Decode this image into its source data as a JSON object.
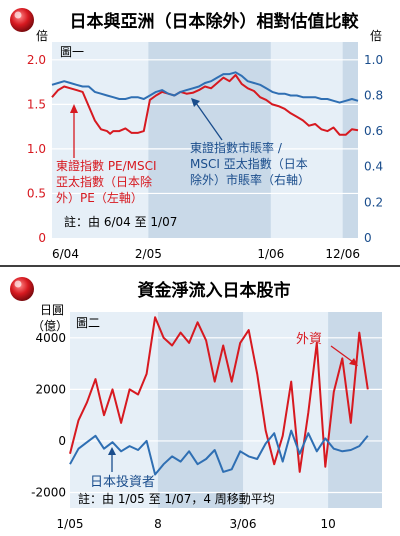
{
  "colors": {
    "red": "#d71920",
    "blue": "#2f6fb3",
    "blue_label": "#1a4d8c",
    "shade": "#c9d9e8",
    "plot_bg": "#e6eff7"
  },
  "chart_data": [
    {
      "type": "line",
      "title": "日本與亞洲（日本除外）相對估值比較",
      "panel_label": "圖一",
      "left_axis_unit": "倍",
      "right_axis_unit": "倍",
      "left_ticks": [
        "2.0",
        "1.5",
        "1.0",
        "0.5",
        "0"
      ],
      "right_ticks": [
        "1.0",
        "0.8",
        "0.6",
        "0.4",
        "0.2",
        "0"
      ],
      "ylim_left": [
        0,
        2.2
      ],
      "ylim_right": [
        0,
        1.1
      ],
      "x_tick_labels": [
        "6/04",
        "2/05",
        "1/06",
        "12/06"
      ],
      "shaded_spans": [
        [
          "2/05",
          "1/06"
        ],
        [
          "12/06",
          "1/07"
        ]
      ],
      "note": "註：由 6/04 至 1/07",
      "series": [
        {
          "name": "東證指數 PE/MSCI 亞太指數（日本除外）PE（左軸）",
          "label_lines": [
            "東證指數 PE/MSCI",
            "亞太指數（日本除",
            "外）PE（左軸）"
          ],
          "axis": "left",
          "color": "#d71920",
          "x": [
            0,
            2,
            4,
            6,
            8,
            10,
            12,
            14,
            16,
            18,
            19,
            20,
            22,
            24,
            26,
            28,
            30,
            32,
            34,
            36,
            38,
            40,
            42,
            44,
            46,
            48,
            50,
            52,
            54,
            56,
            58,
            60,
            62,
            64,
            66,
            68,
            70,
            72,
            74,
            76,
            78,
            80,
            82,
            84,
            86,
            88,
            90,
            92,
            94,
            96,
            98,
            100
          ],
          "y": [
            1.58,
            1.66,
            1.7,
            1.68,
            1.66,
            1.64,
            1.48,
            1.32,
            1.22,
            1.2,
            1.17,
            1.2,
            1.2,
            1.23,
            1.18,
            1.18,
            1.2,
            1.55,
            1.6,
            1.64,
            1.62,
            1.6,
            1.64,
            1.62,
            1.63,
            1.66,
            1.7,
            1.68,
            1.74,
            1.8,
            1.76,
            1.83,
            1.73,
            1.68,
            1.65,
            1.58,
            1.55,
            1.5,
            1.48,
            1.45,
            1.4,
            1.36,
            1.32,
            1.26,
            1.28,
            1.22,
            1.2,
            1.24,
            1.16,
            1.16,
            1.22,
            1.21
          ]
        },
        {
          "name": "東證指數市賬率／MSCI 亞太指數（日本除外）市賬率（右軸）",
          "label_lines": [
            "東證指數市賬率 /",
            "MSCI 亞太指數（日本",
            "除外）市賬率（右軸）"
          ],
          "axis": "right",
          "color": "#2f6fb3",
          "x": [
            0,
            2,
            4,
            6,
            8,
            10,
            12,
            14,
            16,
            18,
            20,
            22,
            24,
            26,
            28,
            30,
            32,
            34,
            36,
            38,
            40,
            42,
            44,
            46,
            48,
            50,
            52,
            54,
            56,
            58,
            60,
            62,
            64,
            66,
            68,
            70,
            72,
            74,
            76,
            78,
            80,
            82,
            84,
            86,
            88,
            90,
            92,
            94,
            96,
            98,
            100
          ],
          "y": [
            0.86,
            0.87,
            0.88,
            0.87,
            0.86,
            0.85,
            0.85,
            0.82,
            0.81,
            0.8,
            0.79,
            0.78,
            0.78,
            0.79,
            0.79,
            0.78,
            0.8,
            0.82,
            0.83,
            0.81,
            0.8,
            0.82,
            0.83,
            0.84,
            0.85,
            0.87,
            0.88,
            0.9,
            0.92,
            0.92,
            0.93,
            0.91,
            0.88,
            0.87,
            0.86,
            0.84,
            0.82,
            0.81,
            0.81,
            0.8,
            0.8,
            0.79,
            0.79,
            0.79,
            0.78,
            0.78,
            0.77,
            0.76,
            0.77,
            0.78,
            0.77
          ]
        }
      ]
    },
    {
      "type": "line",
      "title": "資金淨流入日本股市",
      "panel_label": "圖二",
      "y_unit_lines": [
        "日圓",
        "（億）"
      ],
      "y_ticks": [
        "4000",
        "2000",
        "0",
        "-2000"
      ],
      "ylim": [
        -2600,
        5000
      ],
      "x_tick_labels": [
        "1/05",
        "8",
        "3/06",
        "10"
      ],
      "shaded_spans": [
        [
          "8",
          "3/06"
        ],
        [
          "10",
          "1/07"
        ]
      ],
      "note": "註：由 1/05 至 1/07，4 周移動平均",
      "series": [
        {
          "name": "外資",
          "color": "#d71920",
          "x": [
            0,
            3,
            6,
            9,
            12,
            15,
            18,
            21,
            24,
            27,
            30,
            33,
            36,
            39,
            42,
            45,
            48,
            51,
            54,
            57,
            60,
            63,
            66,
            69,
            72,
            75,
            78,
            81,
            84,
            87,
            90,
            93,
            96,
            99,
            102,
            105
          ],
          "y": [
            -500,
            800,
            1500,
            2400,
            1000,
            2000,
            700,
            2000,
            1800,
            2600,
            4800,
            4000,
            3700,
            4200,
            3800,
            4600,
            3900,
            2300,
            3700,
            2300,
            3800,
            4300,
            2600,
            400,
            -900,
            200,
            2300,
            -1200,
            1100,
            3800,
            -1000,
            1900,
            3200,
            700,
            4200,
            2000
          ]
        },
        {
          "name": "日本投資者",
          "color": "#2f6fb3",
          "x": [
            0,
            3,
            6,
            9,
            12,
            15,
            18,
            21,
            24,
            27,
            30,
            33,
            36,
            39,
            42,
            45,
            48,
            51,
            54,
            57,
            60,
            63,
            66,
            69,
            72,
            75,
            78,
            81,
            84,
            87,
            90,
            93,
            96,
            99,
            102,
            105
          ],
          "y": [
            -900,
            -300,
            -50,
            200,
            -300,
            -50,
            -400,
            -200,
            -350,
            0,
            -1300,
            -900,
            -600,
            -800,
            -400,
            -900,
            -700,
            -350,
            -1200,
            -1100,
            -400,
            -600,
            -700,
            -100,
            300,
            -800,
            400,
            -500,
            300,
            -400,
            100,
            -300,
            -400,
            -350,
            -200,
            200
          ]
        }
      ]
    }
  ]
}
